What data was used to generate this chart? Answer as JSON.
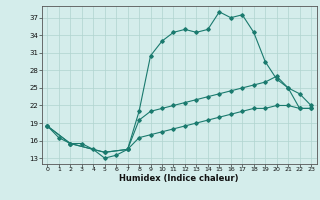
{
  "xlabel": "Humidex (Indice chaleur)",
  "bg_color": "#d4edeb",
  "line_color": "#1a7a6e",
  "grid_color": "#b0d4cf",
  "xlim": [
    -0.5,
    23.5
  ],
  "ylim": [
    12,
    39
  ],
  "yticks": [
    13,
    16,
    19,
    22,
    25,
    28,
    31,
    34,
    37
  ],
  "xticks": [
    0,
    1,
    2,
    3,
    4,
    5,
    6,
    7,
    8,
    9,
    10,
    11,
    12,
    13,
    14,
    15,
    16,
    17,
    18,
    19,
    20,
    21,
    22,
    23
  ],
  "series1_x": [
    0,
    1,
    2,
    3,
    4,
    5,
    6,
    7,
    8,
    9,
    10,
    11,
    12,
    13,
    14,
    15,
    16,
    17,
    18,
    19,
    20,
    21,
    22,
    23
  ],
  "series1_y": [
    18.5,
    16.5,
    15.5,
    15.5,
    14.5,
    13.0,
    13.5,
    14.5,
    21.0,
    30.5,
    33.0,
    34.5,
    35.0,
    34.5,
    35.0,
    38.0,
    37.0,
    37.5,
    34.5,
    29.5,
    26.5,
    25.0,
    21.5,
    21.5
  ],
  "series2_x": [
    0,
    2,
    5,
    7,
    8,
    9,
    10,
    11,
    12,
    13,
    14,
    15,
    16,
    17,
    18,
    19,
    20,
    21,
    22,
    23
  ],
  "series2_y": [
    18.5,
    15.5,
    14.0,
    14.5,
    19.5,
    21.0,
    21.5,
    22.0,
    22.5,
    23.0,
    23.5,
    24.0,
    24.5,
    25.0,
    25.5,
    26.0,
    27.0,
    25.0,
    24.0,
    22.0
  ],
  "series3_x": [
    0,
    2,
    5,
    7,
    8,
    9,
    10,
    11,
    12,
    13,
    14,
    15,
    16,
    17,
    18,
    19,
    20,
    21,
    22,
    23
  ],
  "series3_y": [
    18.5,
    15.5,
    14.0,
    14.5,
    16.5,
    17.0,
    17.5,
    18.0,
    18.5,
    19.0,
    19.5,
    20.0,
    20.5,
    21.0,
    21.5,
    21.5,
    22.0,
    22.0,
    21.5,
    21.5
  ]
}
